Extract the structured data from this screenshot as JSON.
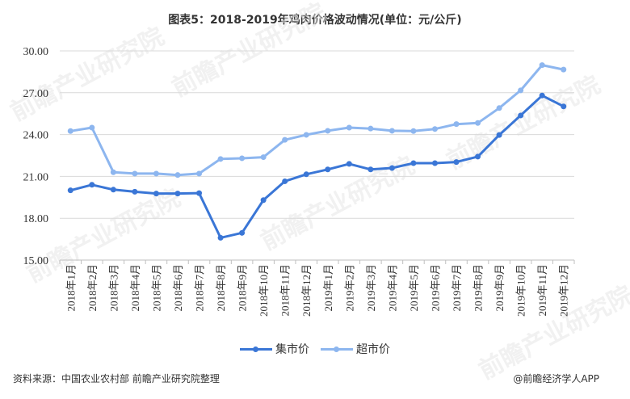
{
  "title": "图表5：2018-2019年鸡肉价格波动情况(单位：元/公斤)",
  "legend": {
    "market": "集市价",
    "supermarket": "超市价"
  },
  "footer": {
    "source": "资料来源：中国农业农村部 前瞻产业研究院整理",
    "credit": "@前瞻经济学人APP"
  },
  "watermark": "前瞻产业研究院",
  "colors": {
    "market": "#3a76d6",
    "supermarket": "#8db6ef",
    "grid": "#d9d9d9",
    "axis": "#bfbfbf"
  },
  "chart_data": {
    "type": "line",
    "title": "图表5：2018-2019年鸡肉价格波动情况(单位：元/公斤)",
    "xlabel": "",
    "ylabel": "",
    "ylim": [
      15,
      30
    ],
    "yticks": [
      "15.00",
      "18.00",
      "21.00",
      "24.00",
      "27.00",
      "30.00"
    ],
    "grid": true,
    "legend_position": "bottom",
    "categories": [
      "2018年1月",
      "2018年2月",
      "2018年3月",
      "2018年4月",
      "2018年5月",
      "2018年6月",
      "2018年7月",
      "2018年8月",
      "2018年9月",
      "2018年10月",
      "2018年11月",
      "2018年12月",
      "2019年1月",
      "2019年2月",
      "2019年3月",
      "2019年4月",
      "2019年5月",
      "2019年6月",
      "2019年7月",
      "2019年8月",
      "2019年9月",
      "2019年10月",
      "2019年11月",
      "2019年12月"
    ],
    "series": [
      {
        "name": "集市价",
        "values": [
          20.0,
          20.4,
          20.05,
          19.9,
          19.77,
          19.77,
          19.8,
          16.6,
          16.95,
          19.3,
          20.65,
          21.15,
          21.5,
          21.9,
          21.5,
          21.6,
          21.95,
          21.95,
          22.03,
          22.42,
          23.97,
          25.37,
          26.8,
          26.02
        ]
      },
      {
        "name": "超市价",
        "values": [
          24.25,
          24.5,
          21.3,
          21.2,
          21.2,
          21.1,
          21.2,
          22.25,
          22.3,
          22.38,
          23.62,
          23.98,
          24.27,
          24.5,
          24.43,
          24.27,
          24.25,
          24.4,
          24.75,
          24.83,
          25.9,
          27.17,
          28.98,
          28.66
        ]
      }
    ]
  }
}
